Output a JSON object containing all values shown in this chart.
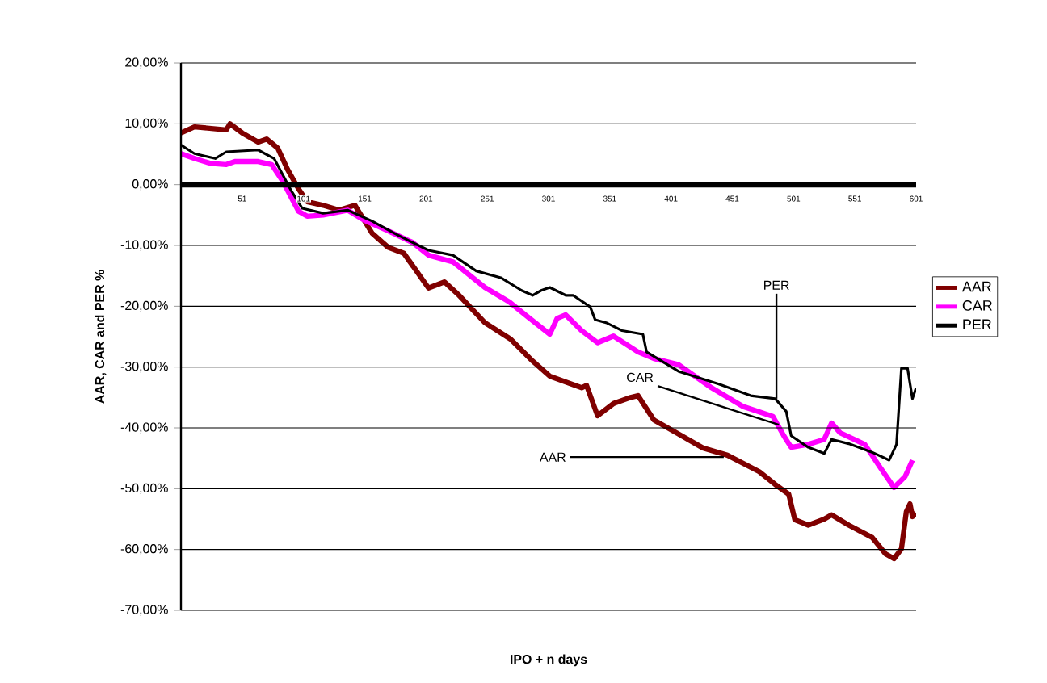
{
  "chart_data": {
    "type": "line",
    "xlabel": "IPO + n days",
    "ylabel": "AAR, CAR and PER %",
    "xlim": [
      1,
      601
    ],
    "xticks": [
      51,
      101,
      151,
      201,
      251,
      301,
      351,
      401,
      451,
      501,
      551,
      601
    ],
    "ylim": [
      -70,
      20
    ],
    "yticks": [
      {
        "value": 20,
        "label": "20,00%"
      },
      {
        "value": 10,
        "label": "10,00%"
      },
      {
        "value": 0,
        "label": "0,00%"
      },
      {
        "value": -10,
        "label": "-10,00%"
      },
      {
        "value": -20,
        "label": "-20,00%"
      },
      {
        "value": -30,
        "label": "-30,00%"
      },
      {
        "value": -40,
        "label": "-40,00%"
      },
      {
        "value": -50,
        "label": "-50,00%"
      },
      {
        "value": -60,
        "label": "-60,00%"
      },
      {
        "value": -70,
        "label": "-70,00%"
      }
    ],
    "grid": "y",
    "legend": "right",
    "marker": "none",
    "line_style": "solid",
    "series": [
      {
        "name": "AAR",
        "color": "#800000",
        "x": [
          1,
          12,
          38,
          41,
          51,
          64,
          71,
          80,
          88,
          97,
          104,
          117,
          130,
          143,
          157,
          170,
          183,
          203,
          216,
          227,
          249,
          270,
          288,
          302,
          328,
          332,
          341,
          354,
          368,
          374,
          387,
          407,
          427,
          447,
          473,
          486,
          497,
          502,
          513,
          526,
          532,
          546,
          565,
          576,
          583,
          589,
          593,
          596,
          598,
          601
        ],
        "values": [
          8.5,
          9.5,
          9,
          10,
          8.5,
          7,
          7.5,
          6,
          2.5,
          -0.7,
          -2.8,
          -3.4,
          -4.2,
          -3.4,
          -8,
          -10.3,
          -11.3,
          -17,
          -16,
          -18,
          -22.7,
          -25.4,
          -29,
          -31.5,
          -33.4,
          -33,
          -38,
          -36,
          -35,
          -34.7,
          -38.7,
          -41,
          -43.3,
          -44.5,
          -47.2,
          -49.3,
          -50.9,
          -55.1,
          -56,
          -55,
          -54.3,
          -56,
          -58,
          -60.7,
          -61.5,
          -59.9,
          -53.8,
          -52.5,
          -54.6,
          -54
        ]
      },
      {
        "name": "CAR",
        "color": "#ff00ff",
        "x": [
          1,
          12,
          25,
          38,
          45,
          64,
          75,
          84,
          97,
          104,
          117,
          137,
          150,
          170,
          190,
          203,
          223,
          249,
          269,
          282,
          302,
          308,
          315,
          328,
          341,
          354,
          374,
          387,
          407,
          434,
          460,
          484,
          493,
          499,
          513,
          526,
          532,
          539,
          559,
          572,
          583,
          592,
          598
        ],
        "values": [
          5.1,
          4.3,
          3.5,
          3.3,
          3.8,
          3.8,
          3.3,
          0.6,
          -4.4,
          -5.2,
          -5,
          -4.2,
          -5.8,
          -7.6,
          -9.5,
          -11.6,
          -12.7,
          -16.9,
          -19.3,
          -21.4,
          -24.6,
          -22,
          -21.4,
          -24,
          -26,
          -24.9,
          -27.5,
          -28.6,
          -29.6,
          -33.4,
          -36.5,
          -38.1,
          -41.3,
          -43.2,
          -42.7,
          -41.9,
          -39.2,
          -40.8,
          -42.7,
          -46.6,
          -49.8,
          -48,
          -45.3
        ]
      },
      {
        "name": "PER",
        "color": "#000000",
        "x": [
          1,
          12,
          29,
          38,
          64,
          77,
          91,
          100,
          117,
          137,
          157,
          176,
          203,
          223,
          242,
          262,
          279,
          288,
          295,
          302,
          315,
          321,
          335,
          339,
          348,
          361,
          378,
          381,
          407,
          440,
          466,
          486,
          495,
          499,
          513,
          526,
          532,
          546,
          565,
          579,
          585,
          589,
          594,
          598,
          601
        ],
        "values": [
          6.5,
          5.1,
          4.3,
          5.4,
          5.7,
          4.3,
          -1,
          -3.9,
          -4.7,
          -4.2,
          -6,
          -8.1,
          -10.8,
          -11.6,
          -14.2,
          -15.3,
          -17.4,
          -18.2,
          -17.4,
          -16.9,
          -18.2,
          -18.2,
          -20.1,
          -22.2,
          -22.7,
          -24,
          -24.6,
          -27.5,
          -30.7,
          -32.8,
          -34.7,
          -35.2,
          -37.3,
          -41.3,
          -43.2,
          -44.2,
          -41.9,
          -42.6,
          -44,
          -45.3,
          -42.7,
          -30.2,
          -30.2,
          -35.2,
          -33.4
        ]
      }
    ],
    "annotations": [
      {
        "text": "PER",
        "x": 487,
        "y": -35.2
      },
      {
        "text": "CAR",
        "x": 489,
        "y": -39.5
      },
      {
        "text": "AAR",
        "x": 444,
        "y": -44.8
      }
    ]
  }
}
